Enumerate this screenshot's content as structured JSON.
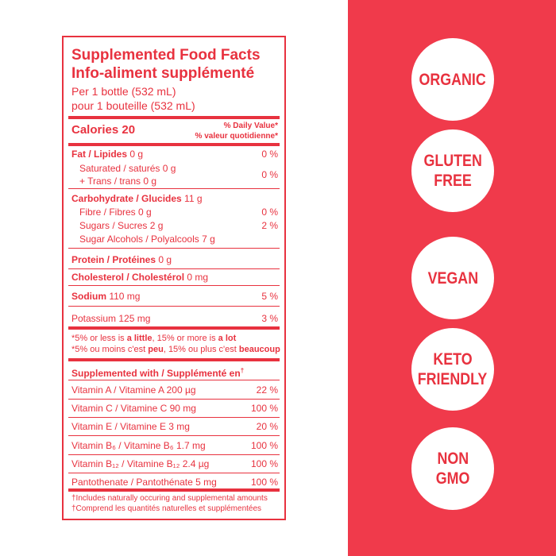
{
  "panel": {
    "title": "Supplemented Food Facts",
    "title_fr": "Info-aliment supplémenté",
    "serving": "Per 1 bottle (532 mL)",
    "serving_fr": "pour 1 bouteille (532 mL)",
    "calories": "Calories 20",
    "daily_value": "% Daily Value*",
    "daily_value_fr": "% valeur quotidienne*",
    "rows": [
      {
        "label": "Fat / Lipides",
        "amount": "0 g",
        "dv": "0 %"
      },
      {
        "label": "Saturated / saturés 0 g",
        "dv": "0 %"
      },
      {
        "label": "+ Trans / trans 0 g"
      },
      {
        "label": "Carbohydrate / Glucides",
        "amount": "11 g"
      },
      {
        "label": "Fibre / Fibres 0 g",
        "dv": "0 %"
      },
      {
        "label": "Sugars / Sucres 2 g",
        "dv": "2 %"
      },
      {
        "label": "Sugar Alcohols / Polyalcools 7 g"
      },
      {
        "label": "Protein / Protéines",
        "amount": "0 g"
      },
      {
        "label": "Cholesterol / Cholestérol",
        "amount": "0 mg"
      },
      {
        "label": "Sodium",
        "amount": "110 mg",
        "dv": "5 %"
      },
      {
        "label": "Potassium 125 mg",
        "dv": "3 %"
      }
    ],
    "footnote": [
      [
        "*5% or less is ",
        "a little",
        ", 15% or more is ",
        "a lot"
      ],
      [
        "*5% ou moins c'est ",
        "peu",
        ", 15% ou plus c'est ",
        "beaucoup"
      ]
    ],
    "supplemented": "Supplemented with / Supplémenté en",
    "supplemented_mark": "†",
    "vitamins": [
      {
        "label": "Vitamin A / Vitamine A 200 µg",
        "dv": "22 %"
      },
      {
        "label": "Vitamin C / Vitamine C 90 mg",
        "dv": "100 %"
      },
      {
        "label": "Vitamin E / Vitamine E 3 mg",
        "dv": "20 %"
      },
      {
        "label": "Vitamin B₆ / Vitamine B₆ 1.7 mg",
        "dv": "100 %"
      },
      {
        "label": "Vitamin B₁₂ / Vitamine B₁₂ 2.4 µg",
        "dv": "100 %"
      },
      {
        "label": "Pantothenate / Pantothénate 5 mg",
        "dv": "100 %"
      }
    ],
    "notes": [
      "†Includes naturally occuring and supplemental amounts",
      "†Comprend les quantités naturelles et supplémentées"
    ]
  },
  "badges": [
    [
      "ORGANIC"
    ],
    [
      "GLUTEN",
      "FREE"
    ],
    [
      "VEGAN"
    ],
    [
      "KETO",
      "FRIENDLY"
    ],
    [
      "NON",
      "GMO"
    ]
  ]
}
